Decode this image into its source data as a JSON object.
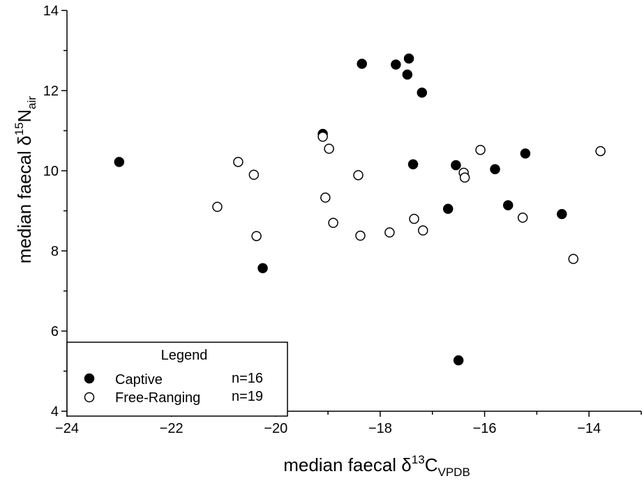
{
  "chart_data": {
    "type": "scatter",
    "xlabel": {
      "main": "median faecal δ",
      "sup": "13",
      "element": "C",
      "sub": "VPDB"
    },
    "ylabel": {
      "main": "median faecal δ",
      "sup": "15",
      "element": "N",
      "sub": "air"
    },
    "xlim": [
      -24,
      -13
    ],
    "ylim": [
      4,
      14
    ],
    "xticks": [
      -24,
      -22,
      -20,
      -18,
      -16,
      -14
    ],
    "xtick_labels": [
      "−24",
      "−22",
      "−20",
      "−18",
      "−16",
      "−14"
    ],
    "yticks": [
      4,
      6,
      8,
      10,
      12,
      14
    ],
    "ytick_labels": [
      "4",
      "6",
      "8",
      "10",
      "12",
      "14"
    ],
    "grid": false,
    "legend": {
      "title": "Legend",
      "placement": "bottom-left",
      "entries": [
        {
          "label": "Captive",
          "n": "n=16",
          "marker": "filled-circle"
        },
        {
          "label": "Free-Ranging",
          "n": "n=19",
          "marker": "open-circle"
        }
      ]
    },
    "series": [
      {
        "name": "Captive",
        "color": "#000000",
        "fill": "filled",
        "points": [
          {
            "x": -23.0,
            "y": 10.22
          },
          {
            "x": -20.25,
            "y": 7.57
          },
          {
            "x": -19.1,
            "y": 10.92
          },
          {
            "x": -18.35,
            "y": 12.67
          },
          {
            "x": -17.7,
            "y": 12.65
          },
          {
            "x": -17.45,
            "y": 12.8
          },
          {
            "x": -17.48,
            "y": 12.4
          },
          {
            "x": -17.2,
            "y": 11.95
          },
          {
            "x": -17.37,
            "y": 10.16
          },
          {
            "x": -16.7,
            "y": 9.05
          },
          {
            "x": -16.55,
            "y": 10.14
          },
          {
            "x": -16.5,
            "y": 5.27
          },
          {
            "x": -15.8,
            "y": 10.04
          },
          {
            "x": -15.55,
            "y": 9.14
          },
          {
            "x": -15.22,
            "y": 10.43
          },
          {
            "x": -14.52,
            "y": 8.92
          }
        ]
      },
      {
        "name": "Free-Ranging",
        "color": "#000000",
        "fill": "open",
        "points": [
          {
            "x": -21.12,
            "y": 9.1
          },
          {
            "x": -20.72,
            "y": 10.22
          },
          {
            "x": -20.42,
            "y": 9.9
          },
          {
            "x": -20.37,
            "y": 8.37
          },
          {
            "x": -19.1,
            "y": 10.85
          },
          {
            "x": -19.05,
            "y": 9.33
          },
          {
            "x": -18.98,
            "y": 10.55
          },
          {
            "x": -18.9,
            "y": 8.7
          },
          {
            "x": -18.42,
            "y": 9.89
          },
          {
            "x": -18.38,
            "y": 8.38
          },
          {
            "x": -17.82,
            "y": 8.46
          },
          {
            "x": -17.35,
            "y": 8.8
          },
          {
            "x": -17.18,
            "y": 8.51
          },
          {
            "x": -16.4,
            "y": 9.95
          },
          {
            "x": -16.38,
            "y": 9.83
          },
          {
            "x": -16.08,
            "y": 10.52
          },
          {
            "x": -15.27,
            "y": 8.83
          },
          {
            "x": -14.3,
            "y": 7.8
          },
          {
            "x": -13.78,
            "y": 10.49
          }
        ]
      }
    ]
  }
}
